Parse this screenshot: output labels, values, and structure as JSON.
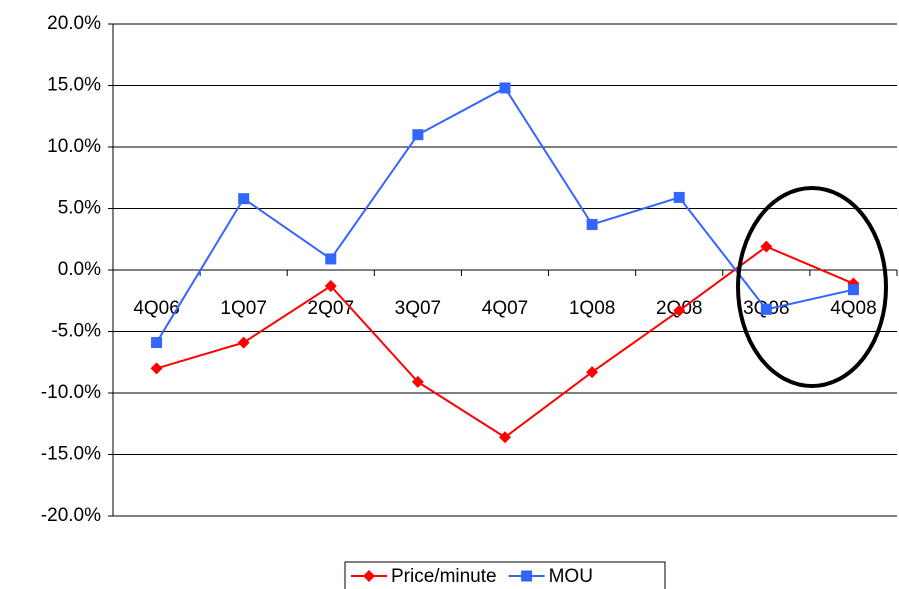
{
  "chart_data": {
    "type": "line",
    "categories": [
      "4Q06",
      "1Q07",
      "2Q07",
      "3Q07",
      "4Q07",
      "1Q08",
      "2Q08",
      "3Q08",
      "4Q08"
    ],
    "series": [
      {
        "name": "Price/minute",
        "color": "#ff0000",
        "marker": "diamond",
        "values": [
          -8.0,
          -5.9,
          -1.3,
          -9.1,
          -13.6,
          -8.3,
          -3.3,
          1.9,
          -1.1
        ]
      },
      {
        "name": "MOU",
        "color": "#3366ff",
        "marker": "square",
        "values": [
          -5.9,
          5.8,
          0.9,
          11.0,
          14.8,
          3.7,
          5.9,
          -3.2,
          -1.6
        ]
      }
    ],
    "ylim": [
      -20,
      20
    ],
    "yticks": [
      {
        "value": -20,
        "label": "-20.0%"
      },
      {
        "value": -15,
        "label": "-15.0%"
      },
      {
        "value": -10,
        "label": "-10.0%"
      },
      {
        "value": -5,
        "label": "-5.0%"
      },
      {
        "value": 0,
        "label": "0.0%"
      },
      {
        "value": 5,
        "label": "5.0%"
      },
      {
        "value": 10,
        "label": "10.0%"
      },
      {
        "value": 15,
        "label": "15.0%"
      },
      {
        "value": 20,
        "label": "20.0%"
      }
    ],
    "grid": true,
    "legend": "bottom"
  }
}
